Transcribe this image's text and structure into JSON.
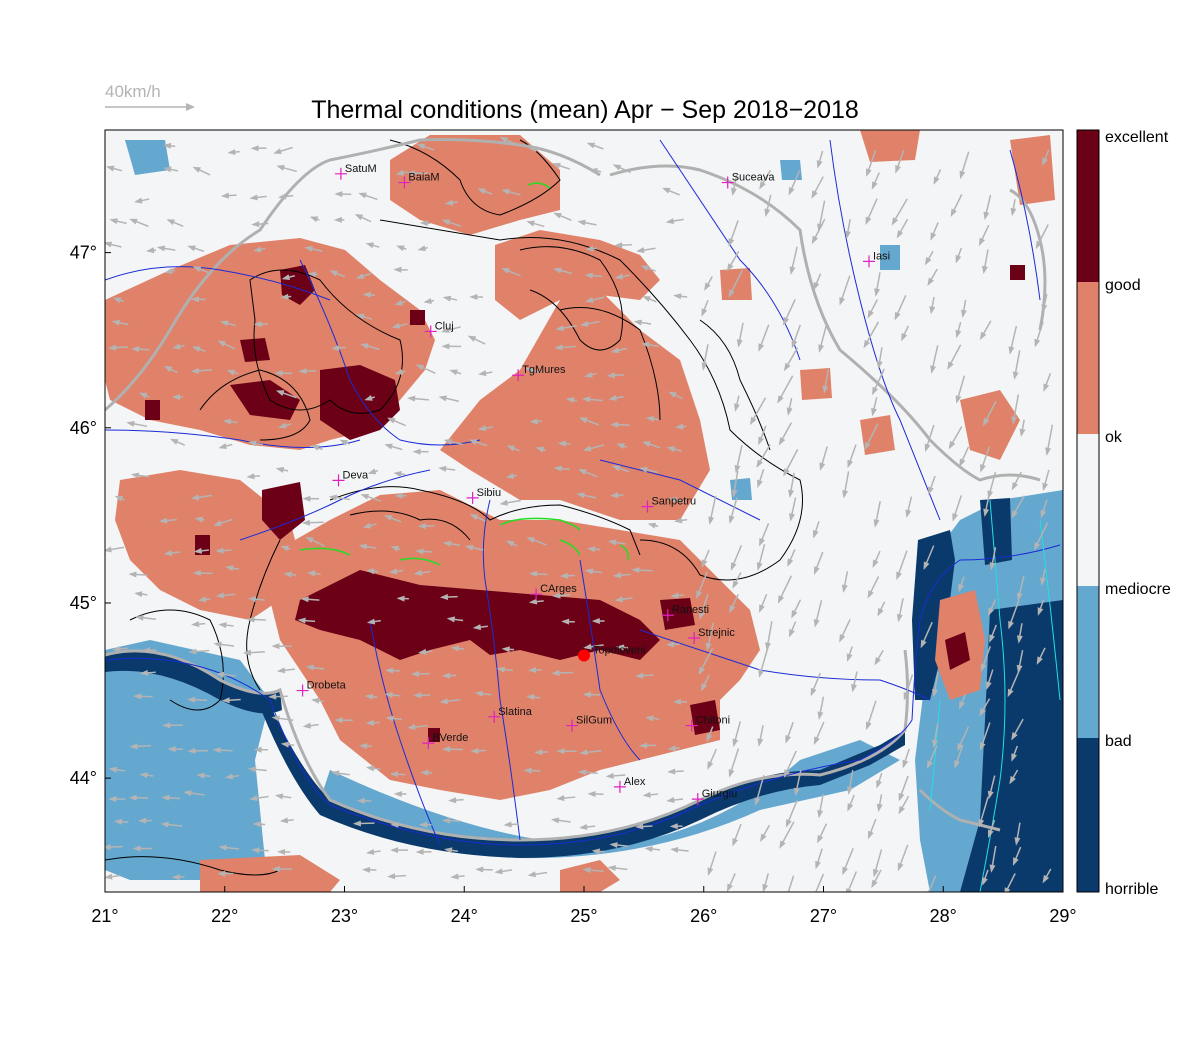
{
  "title": "Thermal conditions (mean) Apr − Sep  2018−2018",
  "wind_scale_label": "40km/h",
  "x_ticks": [
    "21°",
    "22°",
    "23°",
    "24°",
    "25°",
    "26°",
    "27°",
    "28°",
    "29°"
  ],
  "y_ticks": [
    "47°",
    "46°",
    "45°",
    "44°"
  ],
  "legend": [
    {
      "label": "excellent",
      "color": "#6b0016"
    },
    {
      "label": "good",
      "color": "#e0826a"
    },
    {
      "label": "ok",
      "color": "#f4f5f6"
    },
    {
      "label": "mediocre",
      "color": "#64a7cf"
    },
    {
      "label": "bad",
      "color": "#0a3a6b"
    },
    {
      "label": "horrible",
      "color": ""
    }
  ],
  "cities": [
    {
      "name": "SatuM",
      "lon": 22.97,
      "lat": 47.45
    },
    {
      "name": "BaiaM",
      "lon": 23.5,
      "lat": 47.4
    },
    {
      "name": "Suceava",
      "lon": 26.2,
      "lat": 47.4
    },
    {
      "name": "Iasi",
      "lon": 27.38,
      "lat": 46.95
    },
    {
      "name": "Cluj",
      "lon": 23.72,
      "lat": 46.55
    },
    {
      "name": "TgMures",
      "lon": 24.45,
      "lat": 46.3
    },
    {
      "name": "Deva",
      "lon": 22.95,
      "lat": 45.7
    },
    {
      "name": "Sibiu",
      "lon": 24.07,
      "lat": 45.6
    },
    {
      "name": "Sanpetru",
      "lon": 25.53,
      "lat": 45.55
    },
    {
      "name": "CArges",
      "lon": 24.6,
      "lat": 45.05
    },
    {
      "name": "Ranesti",
      "lon": 25.7,
      "lat": 44.93
    },
    {
      "name": "Strejnic",
      "lon": 25.92,
      "lat": 44.8
    },
    {
      "name": "Topoloveni",
      "lon": 25.0,
      "lat": 44.7,
      "highlight": true
    },
    {
      "name": "Drobeta",
      "lon": 22.65,
      "lat": 44.5
    },
    {
      "name": "Slatina",
      "lon": 24.25,
      "lat": 44.35
    },
    {
      "name": "SilGum",
      "lon": 24.9,
      "lat": 44.3
    },
    {
      "name": "Chitoni",
      "lon": 25.9,
      "lat": 44.3
    },
    {
      "name": "BVerde",
      "lon": 23.7,
      "lat": 44.2
    },
    {
      "name": "Alex",
      "lon": 25.3,
      "lat": 43.95
    },
    {
      "name": "Giurgiu",
      "lon": 25.95,
      "lat": 43.88
    }
  ],
  "map_extent": {
    "lon": [
      21,
      29
    ],
    "lat": [
      43.35,
      47.7
    ]
  },
  "colors": {
    "excellent": "#6b0016",
    "good": "#e0826a",
    "ok": "#f4f5f6",
    "mediocre": "#64a7cf",
    "bad": "#0a3a6b",
    "rivers": "#1a2bd6",
    "borders": "#b0b0b0",
    "contours": "#000000",
    "wind_arrows": "#b4b4b4",
    "city_marker": "#e020c0",
    "highlight_marker": "#ff0000"
  }
}
